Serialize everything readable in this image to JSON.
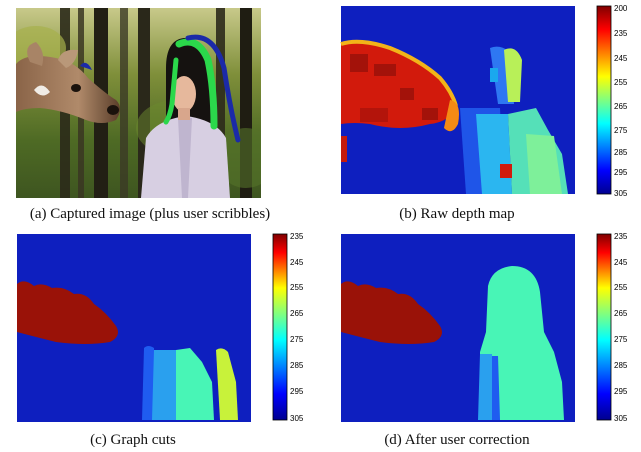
{
  "figure": {
    "captions": {
      "a": "(a) Captured image (plus user scribbles)",
      "b": "(b) Raw depth map",
      "c": "(c) Graph cuts",
      "d": "(d) After user correction"
    },
    "colorbar_b": [
      "200",
      "235",
      "245",
      "255",
      "265",
      "275",
      "285",
      "295",
      "305"
    ],
    "colorbar_cd": [
      "235",
      "245",
      "255",
      "265",
      "275",
      "285",
      "295",
      "305"
    ]
  },
  "colors": {
    "depth_far": "#0e1fbf",
    "deer": "#9a1208",
    "person": "#48f5b6",
    "scribble_green": "#2bd84b",
    "scribble_blue": "#1b2aa8"
  }
}
